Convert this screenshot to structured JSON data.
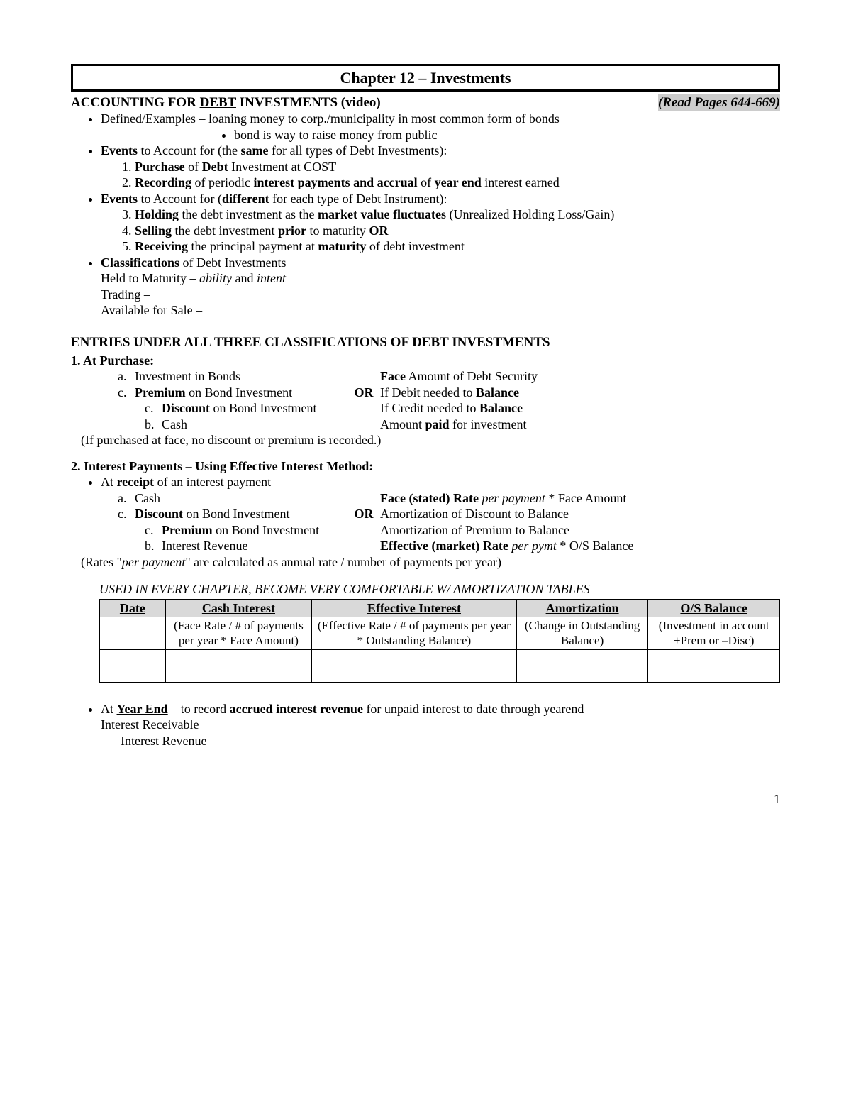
{
  "title": "Chapter 12 – Investments",
  "heading": {
    "left_pre": "ACCOUNTING FOR ",
    "left_u": "DEBT",
    "left_post": " INVESTMENTS (video)",
    "read": "(Read Pages 644-669)"
  },
  "defined": {
    "text": "Defined/Examples – loaning money to corp./municipality in most common form of bonds",
    "sub": "bond is way to raise money from public"
  },
  "events_same": {
    "intro_pre": "Events",
    "intro_mid1": " to Account for (the ",
    "intro_b2": "same",
    "intro_post": " for all types of Debt Investments):",
    "i1": "Purchase",
    "i1_post": " of ",
    "i1_b2": "Debt",
    "i1_post2": " Investment at COST",
    "i2": "Recording",
    "i2_mid": " of periodic ",
    "i2_b2": "interest payments and accrual",
    "i2_mid2": " of ",
    "i2_b3": "year end",
    "i2_post": " interest earned"
  },
  "events_diff": {
    "intro_pre": "Events",
    "intro_mid1": " to Account for (",
    "intro_b2": "different",
    "intro_post": " for each type of Debt Instrument):",
    "i3": "Holding",
    "i3_mid": " the debt investment as the ",
    "i3_b2": "market value fluctuates",
    "i3_post": " (Unrealized Holding Loss/Gain)",
    "i4": "Selling",
    "i4_mid": " the debt investment ",
    "i4_b2": "prior",
    "i4_post": " to maturity ",
    "i4_or": "OR",
    "i5": "Receiving",
    "i5_mid": " the principal payment at ",
    "i5_b2": "maturity",
    "i5_post": " of debt investment"
  },
  "class": {
    "lead": "Classifications",
    "lead_post": " of Debt Investments",
    "htm_pre": "Held to Maturity – ",
    "htm_i1": "ability",
    "htm_mid": " and ",
    "htm_i2": "intent",
    "trading": "Trading –",
    "afs": "Available for Sale –"
  },
  "entries_hdr": "ENTRIES UNDER ALL THREE CLASSIFICATIONS OF DEBT INVESTMENTS",
  "purchase": {
    "title": "1.  At Purchase:",
    "a_l": "Investment in Bonds",
    "a_r_b": "Face",
    "a_r_post": " Amount of Debt Security",
    "c_l_b": "Premium",
    "c_l_post": " on Bond Investment",
    "or": "OR",
    "c_r_pre": "If Debit needed to ",
    "c_r_b": "Balance",
    "c2_l_b": "Discount",
    "c2_l_post": " on Bond Investment",
    "c2_r_pre": "If Credit needed to ",
    "c2_r_b": "Balance",
    "b_l": "Cash",
    "b_r_pre": "Amount ",
    "b_r_b": "paid",
    "b_r_post": " for investment",
    "paren": "(If purchased at face, no discount or premium is recorded.)"
  },
  "interest": {
    "title": "2.  Interest Payments – Using Effective Interest Method:",
    "receipt_pre": "At ",
    "receipt_b": "receipt",
    "receipt_post": " of an interest payment –",
    "a_l": "Cash",
    "a_r_b": "Face (stated) Rate",
    "a_r_i": " per payment",
    "a_r_post": " * Face Amount",
    "c_l_b": "Discount",
    "c_l_post": " on Bond Investment",
    "or": "OR",
    "c_r": "Amortization of Discount to Balance",
    "c2_l_b": "Premium",
    "c2_l_post": " on Bond Investment",
    "c2_r": "Amortization of Premium to Balance",
    "b_l": "Interest Revenue",
    "b_r_b": "Effective (market) Rate",
    "b_r_i": " per pymt",
    "b_r_post": " * O/S Balance",
    "rates_pre": "(Rates \"",
    "rates_i": "per payment",
    "rates_post": "\" are calculated as annual rate / number of payments per year)"
  },
  "amort_note": "USED IN EVERY CHAPTER, BECOME VERY COMFORTABLE W/ AMORTIZATION TABLES",
  "table": {
    "h1": "Date",
    "h2": "Cash Interest",
    "h3": "Effective Interest",
    "h4": "Amortization",
    "h5": "O/S Balance",
    "d2": "(Face Rate / # of payments per year * Face Amount)",
    "d3": "(Effective Rate / # of payments per year * Outstanding Balance)",
    "d4": "(Change in Outstanding Balance)",
    "d5": "(Investment in account +Prem or –Disc)",
    "col_widths": [
      "9%",
      "20%",
      "28%",
      "18%",
      "18%"
    ]
  },
  "yearend": {
    "pre": "At ",
    "u": "Year End",
    "mid": " – to record ",
    "b": "accrued interest revenue",
    "post": " for unpaid interest to date through yearend",
    "l1": "Interest Receivable",
    "l2": "Interest Revenue"
  },
  "page_number": "1"
}
